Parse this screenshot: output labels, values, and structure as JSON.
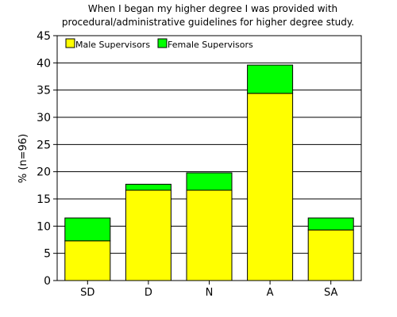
{
  "chart_data": {
    "type": "bar",
    "stacked": true,
    "title": [
      "When I began my higher degree I was provided with",
      "procedural/administrative guidelines for higher degree study."
    ],
    "xlabel": "",
    "ylabel": "% (n=96)",
    "categories": [
      "SD",
      "D",
      "N",
      "A",
      "SA"
    ],
    "series": [
      {
        "name": "Male Supervisors",
        "color": "#ffff00",
        "values": [
          7.3,
          16.6,
          16.6,
          34.4,
          9.3
        ]
      },
      {
        "name": "Female Supervisors",
        "color": "#00ff00",
        "values": [
          4.2,
          1.1,
          3.2,
          5.2,
          2.2
        ]
      }
    ],
    "ylim": [
      0,
      45
    ],
    "yticks": [
      0,
      5,
      10,
      15,
      20,
      25,
      30,
      35,
      40,
      45
    ],
    "grid": true,
    "legend_position": "top-left"
  }
}
